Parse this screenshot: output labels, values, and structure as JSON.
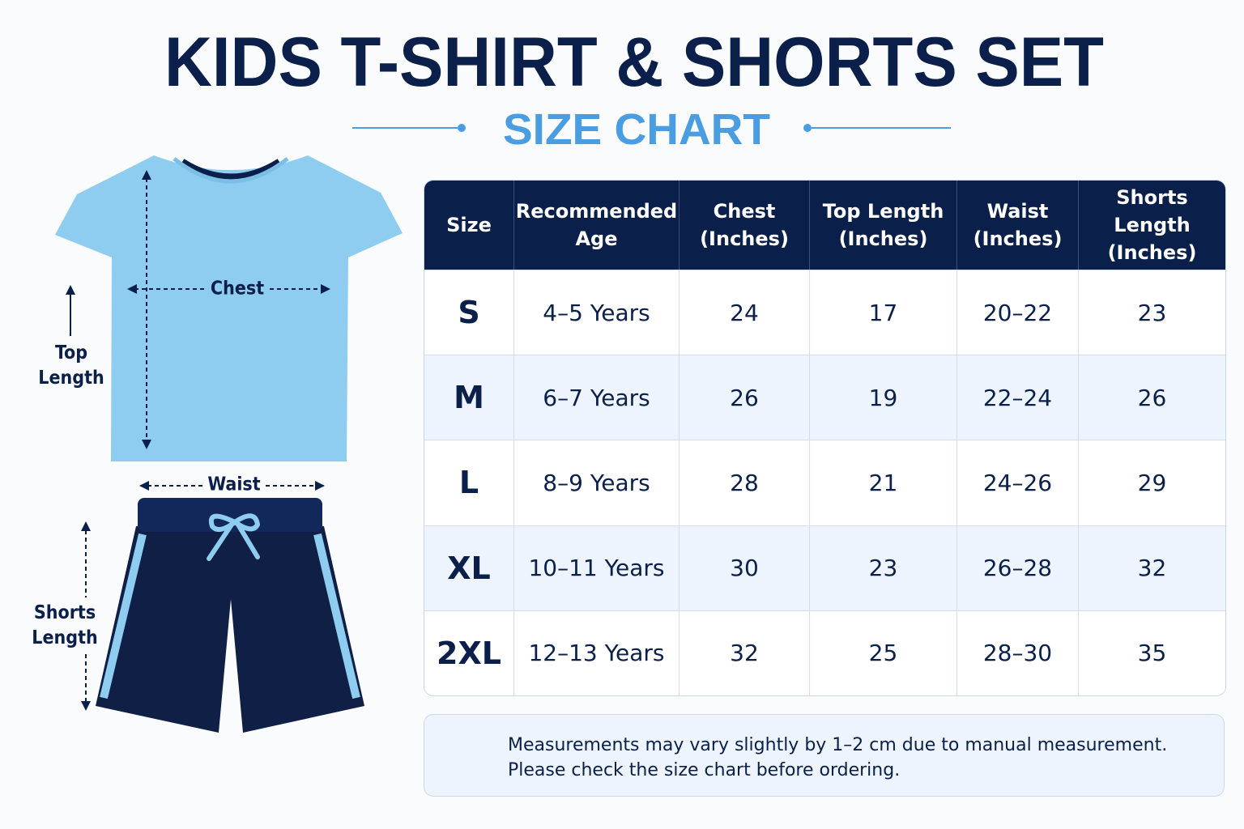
{
  "header": {
    "title": "KIDS T-SHIRT & SHORTS SET",
    "subtitle": "SIZE CHART"
  },
  "diagram": {
    "chest": "Chest",
    "top_length": "Top\nLength",
    "waist": "Waist",
    "shorts_length": "Shorts\nLength"
  },
  "table": {
    "columns": [
      "Size",
      "Recommended\nAge",
      "Chest\n(Inches)",
      "Top Length\n(Inches)",
      "Waist\n(Inches)",
      "Shorts Length\n(Inches)"
    ],
    "rows": [
      [
        "S",
        "4–5 Years",
        "24",
        "17",
        "20–22",
        "23"
      ],
      [
        "M",
        "6–7 Years",
        "26",
        "19",
        "22–24",
        "26"
      ],
      [
        "L",
        "8–9 Years",
        "28",
        "21",
        "24–26",
        "29"
      ],
      [
        "XL",
        "10–11 Years",
        "30",
        "23",
        "26–28",
        "32"
      ],
      [
        "2XL",
        "12–13 Years",
        "32",
        "25",
        "28–30",
        "35"
      ]
    ]
  },
  "note": {
    "lines": [
      "Measurements may vary slightly by 1–2 cm due to manual measurement.",
      "Please check the size chart before ordering."
    ]
  }
}
